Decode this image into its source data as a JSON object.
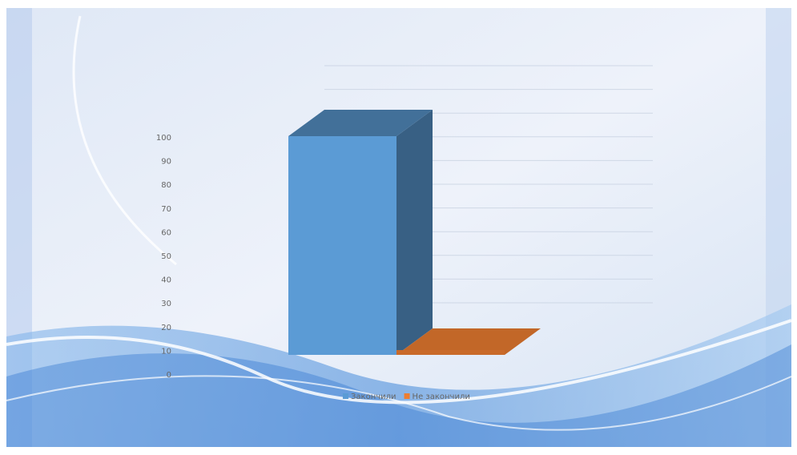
{
  "chart_data": {
    "type": "bar3d",
    "categories": [
      null
    ],
    "series": [
      {
        "name": "Закончили",
        "color": "#5b9bd5",
        "values": [
          100
        ]
      },
      {
        "name": "Не закончили",
        "color": "#ed7d31",
        "values": [
          0
        ]
      }
    ],
    "ylim": [
      0,
      100
    ],
    "yticks": [
      0,
      10,
      20,
      30,
      40,
      50,
      60,
      70,
      80,
      90,
      100
    ],
    "grid": true,
    "legend": "bottom"
  }
}
